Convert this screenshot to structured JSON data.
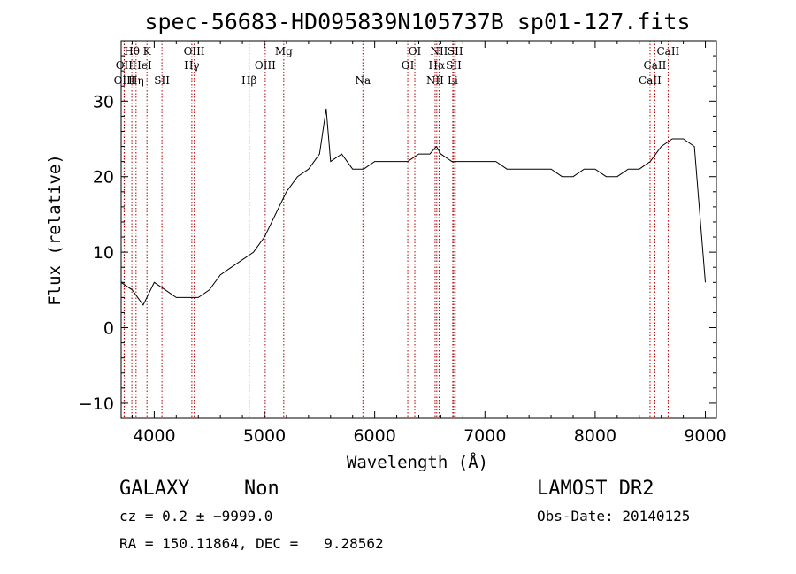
{
  "chart_data": {
    "type": "line",
    "title": "spec-56683-HD095839N105737B_sp01-127.fits",
    "xlabel": "Wavelength (Å)",
    "ylabel": "Flux (relative)",
    "xlim": [
      3700,
      9100
    ],
    "ylim": [
      -12,
      38
    ],
    "xticks": [
      4000,
      5000,
      6000,
      7000,
      8000,
      9000
    ],
    "xtick_labels": [
      "4000",
      "5000",
      "6000",
      "7000",
      "8000",
      "9000"
    ],
    "yticks": [
      -10,
      0,
      10,
      20,
      30
    ],
    "ytick_labels": [
      "−10",
      "0",
      "10",
      "20",
      "30"
    ],
    "grid": false,
    "series": [
      {
        "x": [
          3700,
          3800,
          3900,
          4000,
          4100,
          4200,
          4300,
          4400,
          4500,
          4600,
          4700,
          4800,
          4900,
          5000,
          5100,
          5200,
          5300,
          5400,
          5500,
          5560,
          5600,
          5700,
          5800,
          5900,
          6000,
          6100,
          6200,
          6300,
          6400,
          6500,
          6560,
          6600,
          6700,
          6800,
          6900,
          7000,
          7100,
          7200,
          7300,
          7400,
          7500,
          7600,
          7700,
          7800,
          7900,
          8000,
          8100,
          8200,
          8300,
          8400,
          8500,
          8600,
          8700,
          8800,
          8900,
          9000
        ],
        "y": [
          6,
          5,
          3,
          6,
          5,
          4,
          4,
          4,
          5,
          7,
          8,
          9,
          10,
          12,
          15,
          18,
          20,
          21,
          23,
          29,
          22,
          23,
          21,
          21,
          22,
          22,
          22,
          22,
          23,
          23,
          24,
          23,
          22,
          22,
          22,
          22,
          22,
          21,
          21,
          21,
          21,
          21,
          20,
          20,
          21,
          21,
          20,
          20,
          21,
          21,
          22,
          24,
          25,
          25,
          24,
          6
        ]
      }
    ],
    "line_markers": [
      {
        "label": "Hθ",
        "wavelength": 3797,
        "row": 1
      },
      {
        "label": "OII",
        "wavelength": 3727,
        "row": 2
      },
      {
        "label": "OIII",
        "wavelength": 3729,
        "row": 3
      },
      {
        "label": "Hη",
        "wavelength": 3835,
        "row": 3
      },
      {
        "label": "HeI",
        "wavelength": 3889,
        "row": 2
      },
      {
        "label": "K",
        "wavelength": 3934,
        "row": 1
      },
      {
        "label": "SII",
        "wavelength": 4070,
        "row": 3
      },
      {
        "label": "OIII",
        "wavelength": 4363,
        "row": 1
      },
      {
        "label": "Hγ",
        "wavelength": 4341,
        "row": 2
      },
      {
        "label": "Hβ",
        "wavelength": 4861,
        "row": 3
      },
      {
        "label": "OIII",
        "wavelength": 5007,
        "row": 2
      },
      {
        "label": "Mg",
        "wavelength": 5175,
        "row": 1
      },
      {
        "label": "Na",
        "wavelength": 5893,
        "row": 3
      },
      {
        "label": "OI",
        "wavelength": 6300,
        "row": 2
      },
      {
        "label": "OI",
        "wavelength": 6364,
        "row": 1
      },
      {
        "label": "NII",
        "wavelength": 6548,
        "row": 3
      },
      {
        "label": "Hα",
        "wavelength": 6563,
        "row": 2
      },
      {
        "label": "NII",
        "wavelength": 6584,
        "row": 1
      },
      {
        "label": "SII",
        "wavelength": 6717,
        "row": 2
      },
      {
        "label": "Li",
        "wavelength": 6708,
        "row": 3
      },
      {
        "label": "SII",
        "wavelength": 6731,
        "row": 1
      },
      {
        "label": "CaII",
        "wavelength": 8498,
        "row": 3
      },
      {
        "label": "CaII",
        "wavelength": 8542,
        "row": 2
      },
      {
        "label": "CaII",
        "wavelength": 8662,
        "row": 1
      }
    ]
  },
  "info": {
    "class_label": "GALAXY",
    "subclass": "Non",
    "survey": "LAMOST DR2",
    "cz": "cz = 0.2 ± −9999.0",
    "obs_date": "Obs-Date: 20140125",
    "coords": "RA = 150.11864, DEC =   9.28562"
  }
}
